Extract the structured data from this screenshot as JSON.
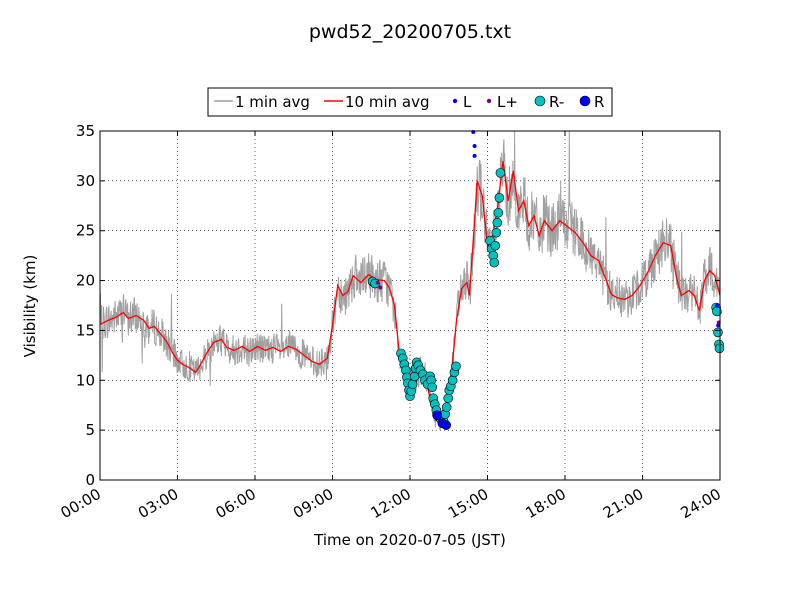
{
  "chart_data": {
    "type": "line",
    "title": "pwd52_20200705.txt",
    "xlabel": "Time on 2020-07-05 (JST)",
    "ylabel": "Visibility (km)",
    "xlim_hours": [
      0,
      24
    ],
    "ylim": [
      0,
      35
    ],
    "x_ticks": [
      {
        "hour": 0,
        "label": "00:00"
      },
      {
        "hour": 3,
        "label": "03:00"
      },
      {
        "hour": 6,
        "label": "06:00"
      },
      {
        "hour": 9,
        "label": "09:00"
      },
      {
        "hour": 12,
        "label": "12:00"
      },
      {
        "hour": 15,
        "label": "15:00"
      },
      {
        "hour": 18,
        "label": "18:00"
      },
      {
        "hour": 21,
        "label": "21:00"
      },
      {
        "hour": 24,
        "label": "24:00"
      }
    ],
    "y_ticks": [
      0,
      5,
      10,
      15,
      20,
      25,
      30,
      35
    ],
    "grid": true,
    "legend_position": "top-center-outside",
    "legend": [
      {
        "label": "1 min avg",
        "kind": "line",
        "color": "#a0a0a0"
      },
      {
        "label": "10 min avg",
        "kind": "line",
        "color": "#ff0000"
      },
      {
        "label": "L",
        "kind": "small-dot",
        "color": "#0000ff"
      },
      {
        "label": "L+",
        "kind": "small-dot",
        "color": "#800080"
      },
      {
        "label": "R-",
        "kind": "marker",
        "color": "#00c0c0"
      },
      {
        "label": "R",
        "kind": "marker",
        "color": "#0000ff"
      }
    ],
    "series": [
      {
        "name": "10 min avg",
        "color": "#ff0000",
        "points": [
          [
            0.0,
            15.6
          ],
          [
            0.3,
            16.0
          ],
          [
            0.6,
            16.3
          ],
          [
            0.9,
            16.8
          ],
          [
            1.1,
            16.2
          ],
          [
            1.4,
            16.5
          ],
          [
            1.7,
            16.0
          ],
          [
            1.9,
            15.2
          ],
          [
            2.1,
            15.4
          ],
          [
            2.4,
            14.5
          ],
          [
            2.6,
            13.8
          ],
          [
            2.8,
            12.8
          ],
          [
            3.0,
            12.0
          ],
          [
            3.2,
            11.6
          ],
          [
            3.5,
            11.2
          ],
          [
            3.7,
            10.8
          ],
          [
            3.9,
            11.6
          ],
          [
            4.1,
            12.6
          ],
          [
            4.4,
            13.8
          ],
          [
            4.7,
            14.1
          ],
          [
            4.9,
            13.3
          ],
          [
            5.2,
            13.0
          ],
          [
            5.5,
            13.4
          ],
          [
            5.8,
            12.9
          ],
          [
            6.1,
            13.4
          ],
          [
            6.4,
            13.0
          ],
          [
            6.7,
            13.3
          ],
          [
            7.0,
            12.9
          ],
          [
            7.3,
            13.4
          ],
          [
            7.6,
            13.1
          ],
          [
            7.9,
            12.5
          ],
          [
            8.2,
            11.9
          ],
          [
            8.5,
            11.6
          ],
          [
            8.8,
            12.2
          ],
          [
            9.0,
            15.5
          ],
          [
            9.2,
            19.5
          ],
          [
            9.4,
            18.5
          ],
          [
            9.6,
            18.9
          ],
          [
            9.8,
            20.5
          ],
          [
            10.1,
            19.8
          ],
          [
            10.4,
            20.6
          ],
          [
            10.7,
            20.1
          ],
          [
            11.0,
            20.0
          ],
          [
            11.2,
            19.3
          ],
          [
            11.4,
            17.5
          ],
          [
            11.6,
            12.3
          ],
          [
            11.8,
            11.5
          ],
          [
            12.0,
            10.2
          ],
          [
            12.2,
            9.5
          ],
          [
            12.4,
            11.0
          ],
          [
            12.6,
            10.5
          ],
          [
            12.8,
            7.8
          ],
          [
            13.0,
            6.0
          ],
          [
            13.2,
            5.8
          ],
          [
            13.4,
            7.5
          ],
          [
            13.6,
            10.5
          ],
          [
            13.8,
            16.0
          ],
          [
            14.0,
            19.2
          ],
          [
            14.2,
            19.8
          ],
          [
            14.3,
            18.5
          ],
          [
            14.5,
            26.0
          ],
          [
            14.6,
            30.0
          ],
          [
            14.8,
            28.5
          ],
          [
            15.0,
            23.5
          ],
          [
            15.2,
            24.5
          ],
          [
            15.4,
            27.5
          ],
          [
            15.6,
            32.0
          ],
          [
            15.8,
            28.0
          ],
          [
            16.0,
            31.0
          ],
          [
            16.2,
            27.0
          ],
          [
            16.4,
            28.0
          ],
          [
            16.6,
            25.5
          ],
          [
            16.8,
            26.5
          ],
          [
            17.0,
            24.5
          ],
          [
            17.2,
            26.0
          ],
          [
            17.5,
            25.0
          ],
          [
            17.8,
            26.0
          ],
          [
            18.1,
            25.4
          ],
          [
            18.4,
            24.8
          ],
          [
            18.7,
            23.8
          ],
          [
            19.0,
            22.5
          ],
          [
            19.3,
            22.0
          ],
          [
            19.6,
            20.0
          ],
          [
            19.8,
            18.6
          ],
          [
            20.0,
            18.3
          ],
          [
            20.3,
            18.1
          ],
          [
            20.6,
            18.5
          ],
          [
            20.9,
            19.5
          ],
          [
            21.2,
            20.8
          ],
          [
            21.5,
            22.5
          ],
          [
            21.8,
            23.8
          ],
          [
            22.1,
            23.5
          ],
          [
            22.3,
            20.5
          ],
          [
            22.5,
            18.5
          ],
          [
            22.8,
            19.0
          ],
          [
            23.0,
            18.5
          ],
          [
            23.2,
            17.0
          ],
          [
            23.4,
            20.0
          ],
          [
            23.6,
            21.0
          ],
          [
            23.8,
            20.5
          ],
          [
            24.0,
            18.5
          ]
        ]
      }
    ],
    "markers": {
      "L": [
        [
          14.5,
          33.5
        ],
        [
          14.5,
          32.5
        ],
        [
          14.45,
          34.9
        ],
        [
          23.88,
          17.5
        ],
        [
          23.93,
          15.5
        ]
      ],
      "L+": [
        [
          10.75,
          19.8
        ],
        [
          10.85,
          19.3
        ],
        [
          23.95,
          15.8
        ]
      ],
      "R-": [
        [
          10.55,
          19.9
        ],
        [
          10.65,
          19.7
        ],
        [
          11.65,
          12.7
        ],
        [
          11.72,
          12.2
        ],
        [
          11.78,
          11.6
        ],
        [
          11.84,
          11.0
        ],
        [
          11.88,
          10.3
        ],
        [
          11.92,
          9.7
        ],
        [
          11.96,
          9.0
        ],
        [
          12.0,
          8.4
        ],
        [
          12.05,
          8.9
        ],
        [
          12.1,
          9.6
        ],
        [
          12.18,
          10.4
        ],
        [
          12.22,
          11.2
        ],
        [
          12.26,
          11.8
        ],
        [
          12.32,
          11.5
        ],
        [
          12.4,
          11.0
        ],
        [
          12.5,
          10.6
        ],
        [
          12.58,
          10.0
        ],
        [
          12.68,
          9.6
        ],
        [
          12.78,
          10.4
        ],
        [
          12.82,
          10.0
        ],
        [
          12.86,
          9.3
        ],
        [
          12.9,
          8.2
        ],
        [
          12.96,
          7.6
        ],
        [
          13.02,
          7.0
        ],
        [
          13.1,
          6.4
        ],
        [
          13.2,
          6.1
        ],
        [
          13.3,
          5.9
        ],
        [
          13.36,
          6.6
        ],
        [
          13.42,
          7.3
        ],
        [
          13.48,
          8.2
        ],
        [
          13.52,
          9.0
        ],
        [
          13.58,
          9.4
        ],
        [
          13.65,
          10.0
        ],
        [
          13.72,
          10.8
        ],
        [
          13.78,
          11.4
        ],
        [
          15.1,
          24.0
        ],
        [
          15.16,
          23.2
        ],
        [
          15.22,
          22.5
        ],
        [
          15.26,
          21.8
        ],
        [
          15.3,
          23.5
        ],
        [
          15.34,
          24.8
        ],
        [
          15.38,
          25.8
        ],
        [
          15.42,
          26.8
        ],
        [
          15.46,
          28.3
        ],
        [
          15.5,
          30.8
        ],
        [
          23.85,
          17.3
        ],
        [
          23.88,
          16.9
        ],
        [
          23.92,
          14.8
        ],
        [
          23.96,
          13.6
        ],
        [
          23.98,
          13.2
        ]
      ],
      "R": [
        [
          13.05,
          6.5
        ],
        [
          13.25,
          5.7
        ],
        [
          13.4,
          5.5
        ]
      ]
    }
  }
}
